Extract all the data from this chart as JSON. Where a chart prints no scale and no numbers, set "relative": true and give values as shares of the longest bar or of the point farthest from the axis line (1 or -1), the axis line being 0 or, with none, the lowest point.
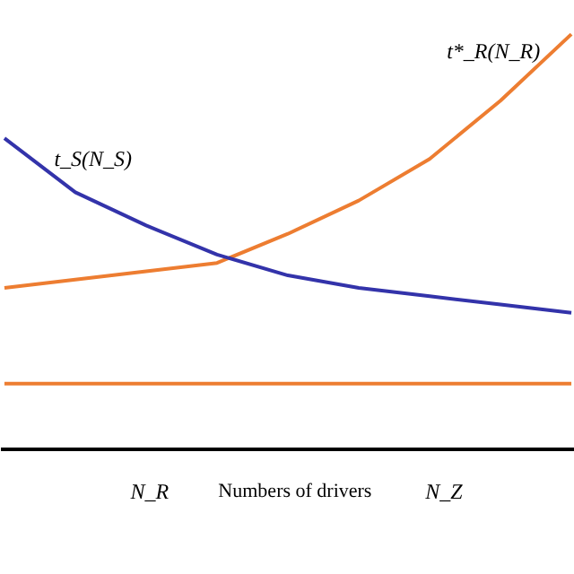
{
  "chart_data": {
    "type": "line",
    "relative": true,
    "xlabel": "Numbers of drivers",
    "categories": [
      null,
      null,
      null,
      null,
      null,
      null,
      null,
      null,
      null
    ],
    "series": [
      {
        "color": "#ed7d31",
        "values": [
          0.39,
          0.41,
          0.43,
          0.45,
          0.52,
          0.6,
          0.7,
          0.84,
          1.0
        ]
      },
      {
        "color": "#3333aa",
        "values": [
          0.75,
          0.62,
          0.54,
          0.47,
          0.42,
          0.39,
          0.37,
          0.35,
          0.33
        ]
      },
      {
        "color": "#ed7d31",
        "values": [
          0.16,
          0.16,
          0.16,
          0.16,
          0.16,
          0.16,
          0.16,
          0.16,
          0.16
        ]
      }
    ],
    "annotations": [
      "t_S(N_S)",
      "t*_R(N_R)",
      "N_R",
      "N_Z"
    ],
    "grid": false
  }
}
